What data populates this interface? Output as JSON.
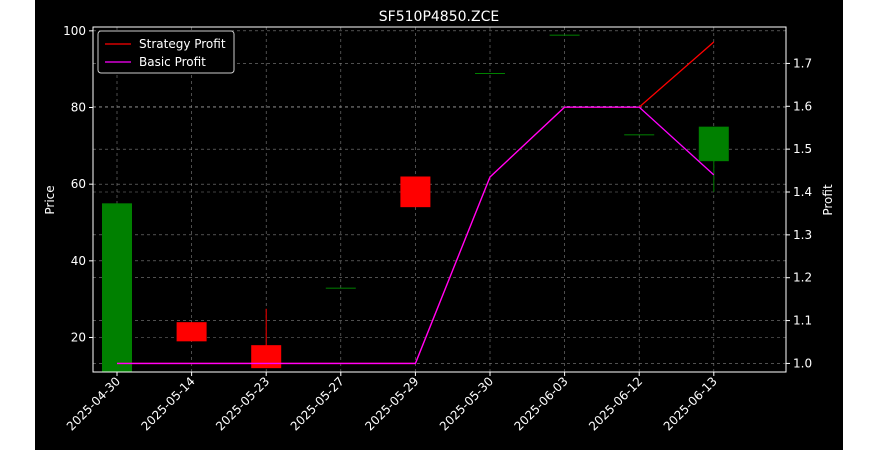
{
  "chart_data": {
    "type": "candlestick",
    "title": "SF510P4850.ZCE",
    "ylabel": "Price",
    "y2label": "Profit",
    "ylim": [
      11,
      101
    ],
    "y2lim": [
      0.98,
      1.785
    ],
    "yticks": [
      20,
      40,
      60,
      80,
      100
    ],
    "y2ticks": [
      1.0,
      1.1,
      1.2,
      1.3,
      1.4,
      1.5,
      1.6,
      1.7
    ],
    "grid": true,
    "legend_position": "top-left",
    "categories": [
      "2025-04-30",
      "2025-05-14",
      "2025-05-23",
      "2025-05-27",
      "2025-05-29",
      "2025-05-30",
      "2025-06-03",
      "2025-06-12",
      "2025-06-13"
    ],
    "candles": [
      {
        "open": 11,
        "close": 55,
        "high": 55,
        "low": 11
      },
      {
        "open": 24,
        "close": 19,
        "high": 24,
        "low": 19
      },
      {
        "open": 18,
        "close": 12,
        "high": 27.5,
        "low": 12
      },
      {
        "open": 33,
        "close": 33,
        "high": 33,
        "low": 33
      },
      {
        "open": 62,
        "close": 54,
        "high": 62,
        "low": 54
      },
      {
        "open": 89,
        "close": 89,
        "high": 89,
        "low": 89
      },
      {
        "open": 99,
        "close": 99,
        "high": 99,
        "low": 99
      },
      {
        "open": 73,
        "close": 73,
        "high": 73,
        "low": 73
      },
      {
        "open": 66,
        "close": 75,
        "high": 75,
        "low": 58
      }
    ],
    "series": [
      {
        "name": "Strategy Profit",
        "color": "#ff0000",
        "axis": "right",
        "values": [
          1.0,
          1.0,
          1.0,
          1.0,
          1.0,
          1.435,
          1.598,
          1.598,
          1.75
        ]
      },
      {
        "name": "Basic Profit",
        "color": "#ff00ff",
        "axis": "right",
        "values": [
          1.0,
          1.0,
          1.0,
          1.0,
          1.0,
          1.435,
          1.598,
          1.598,
          1.44
        ]
      }
    ],
    "colors": {
      "up": "#008000",
      "down": "#ff0000",
      "background": "#000000",
      "grid": "#808080",
      "text": "#ffffff"
    }
  }
}
